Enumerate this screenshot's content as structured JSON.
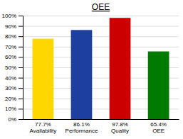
{
  "chart_data": {
    "type": "bar",
    "title": "OEE",
    "categories": [
      "77.7%\nAvailability",
      "86.1%\nPerformance",
      "97.8%\nQuality",
      "65.4%\nOEE"
    ],
    "values": [
      77.7,
      86.1,
      97.8,
      65.4
    ],
    "colors": [
      "#FFD700",
      "#1C3FA0",
      "#CC0000",
      "#007B00"
    ],
    "ylim": [
      0,
      100
    ],
    "yticks": [
      {
        "value": 0,
        "label": "0%"
      },
      {
        "value": 10,
        "label": "10%"
      },
      {
        "value": 20,
        "label": "20%"
      },
      {
        "value": 30,
        "label": "30%"
      },
      {
        "value": 40,
        "label": "40%"
      },
      {
        "value": 50,
        "label": "50%"
      },
      {
        "value": 60,
        "label": "60%"
      },
      {
        "value": 70,
        "label": "70%"
      },
      {
        "value": 80,
        "label": "80%"
      },
      {
        "value": 90,
        "label": "90%"
      },
      {
        "value": 100,
        "label": "100%"
      }
    ],
    "grid": true
  }
}
